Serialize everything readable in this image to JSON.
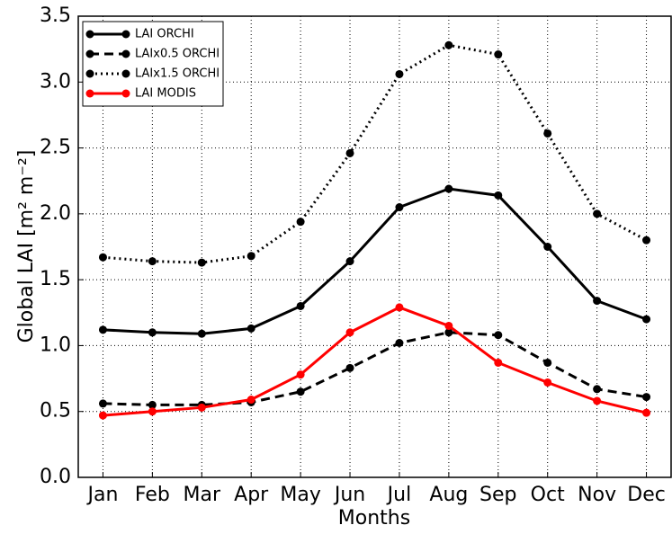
{
  "chart_data": {
    "type": "line",
    "xlabel": "Months",
    "ylabel": "Global LAI [m² m⁻²]",
    "categories": [
      "Jan",
      "Feb",
      "Mar",
      "Apr",
      "May",
      "Jun",
      "Jul",
      "Aug",
      "Sep",
      "Oct",
      "Nov",
      "Dec"
    ],
    "series": [
      {
        "name": "LAI ORCHI",
        "color": "#000000",
        "style": "solid",
        "values": [
          1.12,
          1.1,
          1.09,
          1.13,
          1.3,
          1.64,
          2.05,
          2.19,
          2.14,
          1.75,
          1.34,
          1.2
        ]
      },
      {
        "name": "LAIx0.5 ORCHI",
        "color": "#000000",
        "style": "dashed",
        "values": [
          0.56,
          0.55,
          0.55,
          0.57,
          0.65,
          0.83,
          1.02,
          1.1,
          1.08,
          0.87,
          0.67,
          0.61
        ]
      },
      {
        "name": "LAIx1.5 ORCHI",
        "color": "#000000",
        "style": "dotted",
        "values": [
          1.67,
          1.64,
          1.63,
          1.68,
          1.94,
          2.46,
          3.06,
          3.28,
          3.21,
          2.61,
          2.0,
          1.8
        ]
      },
      {
        "name": "LAI MODIS",
        "color": "#ff0000",
        "style": "solid",
        "values": [
          0.47,
          0.5,
          0.53,
          0.59,
          0.78,
          1.1,
          1.29,
          1.15,
          0.87,
          0.72,
          0.58,
          0.49
        ]
      }
    ],
    "ylim": [
      0,
      3.5
    ],
    "yticks": [
      {
        "value": 0,
        "label": "0.0"
      },
      0.5,
      {
        "value": 1,
        "label": "1.0"
      },
      1.5,
      {
        "value": 2,
        "label": "2.0"
      },
      2.5,
      {
        "value": 3,
        "label": "3.0"
      },
      3.5
    ],
    "grid": true,
    "legend": "upper left"
  }
}
